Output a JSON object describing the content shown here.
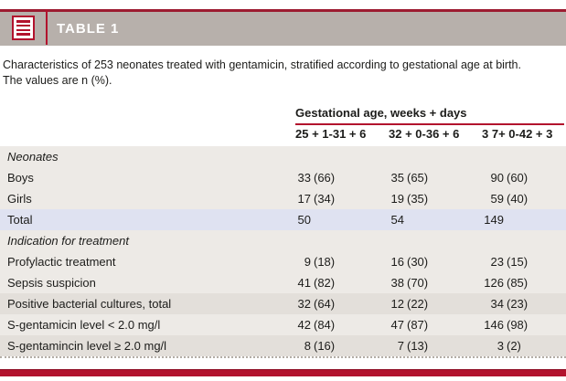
{
  "colors": {
    "accent": "#b2122d",
    "topline": "#9c1b30",
    "bargray": "#b7b0ab",
    "rowlight": "#edeae6",
    "rowlavender": "#dfe2f1",
    "rowdark": "#e3dfda"
  },
  "header": {
    "title": "TABLE 1",
    "icon": "table-lines-icon"
  },
  "caption": {
    "lines": [
      "Characteristics of 253 neonates treated with gentamicin, stratified according to gestational age at birth.",
      "The values are n (%)."
    ]
  },
  "table": {
    "group_header": "Gestational age, weeks + days",
    "columns": [
      "25 + 1-31 + 6",
      "32 + 0-36 + 6",
      "3 7+ 0-42 + 3"
    ],
    "rows": [
      {
        "label": "Neonates",
        "section": true,
        "shade": "light",
        "cells": []
      },
      {
        "label": "Boys",
        "section": false,
        "shade": "light",
        "cells": [
          {
            "n": "33",
            "pct": "(66)"
          },
          {
            "n": "35",
            "pct": "(65)"
          },
          {
            "n": "90",
            "pct": "(60)"
          }
        ]
      },
      {
        "label": "Girls",
        "section": false,
        "shade": "light",
        "cells": [
          {
            "n": "17",
            "pct": "(34)"
          },
          {
            "n": "19",
            "pct": "(35)"
          },
          {
            "n": "59",
            "pct": "(40)"
          }
        ]
      },
      {
        "label": "Total",
        "section": false,
        "shade": "lavender",
        "cells": [
          {
            "n": "50",
            "pct": ""
          },
          {
            "n": "54",
            "pct": ""
          },
          {
            "n": "149",
            "pct": ""
          }
        ]
      },
      {
        "label": "Indication for treatment",
        "section": true,
        "shade": "light",
        "cells": []
      },
      {
        "label": "Profylactic treatment",
        "section": false,
        "shade": "light",
        "cells": [
          {
            "n": "9",
            "pct": "(18)"
          },
          {
            "n": "16",
            "pct": "(30)"
          },
          {
            "n": "23",
            "pct": "(15)"
          }
        ]
      },
      {
        "label": "Sepsis suspicion",
        "section": false,
        "shade": "light",
        "cells": [
          {
            "n": "41",
            "pct": "(82)"
          },
          {
            "n": "38",
            "pct": "(70)"
          },
          {
            "n": "126",
            "pct": "(85)"
          }
        ]
      },
      {
        "label": "Positive bacterial cultures, total",
        "section": false,
        "shade": "dark",
        "cells": [
          {
            "n": "32",
            "pct": "(64)"
          },
          {
            "n": "12",
            "pct": "(22)"
          },
          {
            "n": "34",
            "pct": "(23)"
          }
        ]
      },
      {
        "label": "S-gentamicin level < 2.0 mg/l",
        "section": false,
        "shade": "light",
        "cells": [
          {
            "n": "42",
            "pct": "(84)"
          },
          {
            "n": "47",
            "pct": "(87)"
          },
          {
            "n": "146",
            "pct": "(98)"
          }
        ]
      },
      {
        "label": "S-gentamincin level ≥ 2.0 mg/l",
        "section": false,
        "shade": "dark",
        "cells": [
          {
            "n": "8",
            "pct": "(16)"
          },
          {
            "n": "7",
            "pct": "(13)"
          },
          {
            "n": "3",
            "pct": "(2)"
          }
        ]
      }
    ]
  }
}
